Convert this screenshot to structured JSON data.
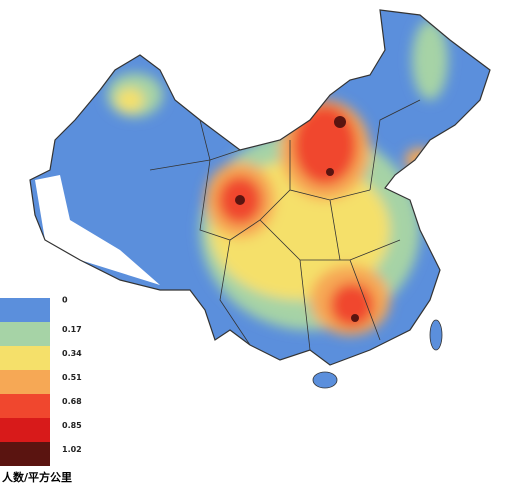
{
  "legend": {
    "unit": "人数/平方公里",
    "levels": [
      {
        "label": "0",
        "color": "#5b8fdc"
      },
      {
        "label": "0.17",
        "color": "#a6d3a6"
      },
      {
        "label": "0.34",
        "color": "#f5e06a"
      },
      {
        "label": "0.51",
        "color": "#f6a855"
      },
      {
        "label": "0.68",
        "color": "#f0472e"
      },
      {
        "label": "0.85",
        "color": "#d81a1a"
      },
      {
        "label": "1.02",
        "color": "#5a1410"
      }
    ]
  }
}
